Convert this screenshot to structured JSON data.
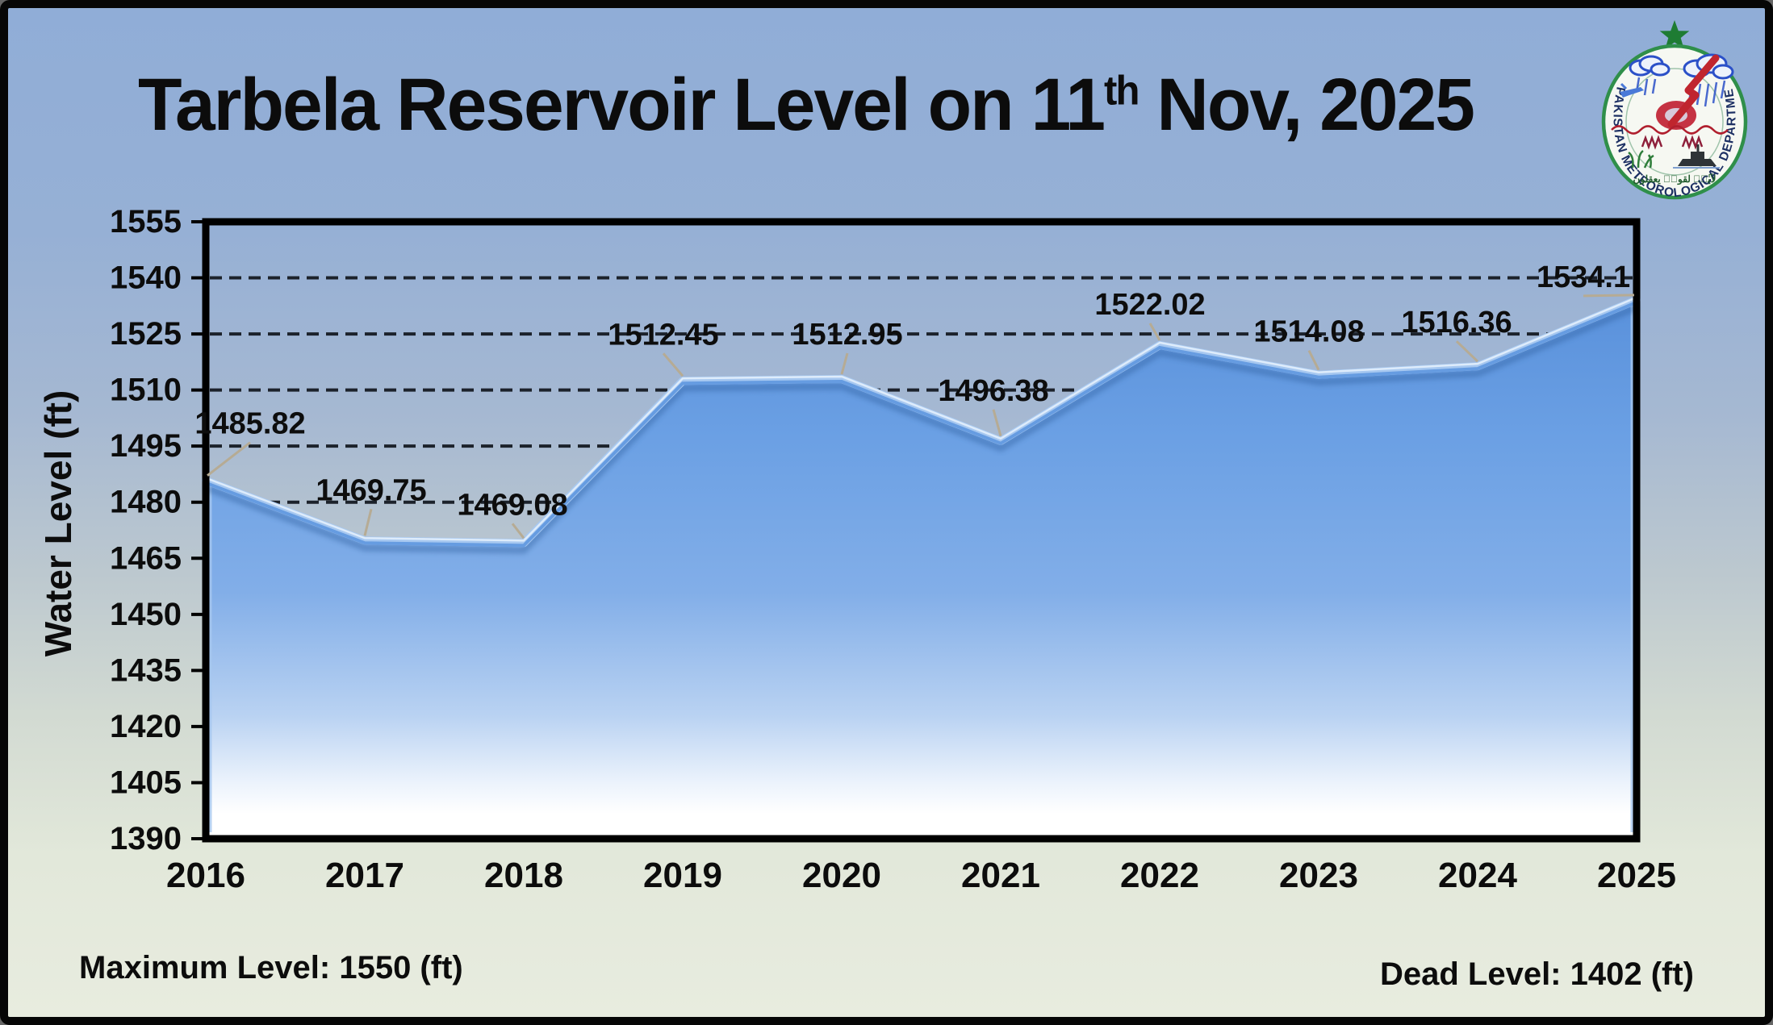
{
  "title": {
    "before_sup": "Tarbela Reservoir Level on 11",
    "sup": "th",
    "after_sup": " Nov, 2025"
  },
  "logo": {
    "ring_text": "PAKISTAN METEOROLOGICAL DEPARTMENT",
    "arabic_motto": "لآيٰتٖ لقومٖ يعقلون"
  },
  "footer": {
    "max_level": "Maximum Level: 1550 (ft)",
    "dead_level": "Dead Level: 1402 (ft)"
  },
  "chart_data": {
    "type": "area",
    "title": "Tarbela Reservoir Level on 11th Nov, 2025",
    "x": [
      "2016",
      "2017",
      "2018",
      "2019",
      "2020",
      "2021",
      "2022",
      "2023",
      "2024",
      "2025"
    ],
    "values": [
      1485.82,
      1469.75,
      1469.08,
      1512.45,
      1512.95,
      1496.38,
      1522.02,
      1514.08,
      1516.36,
      1534.1
    ],
    "value_labels": [
      "1485.82",
      "1469.75",
      "1469.08",
      "1512.45",
      "1512.95",
      "1496.38",
      "1522.02",
      "1514.08",
      "1516.36",
      "1534.1"
    ],
    "ylabel": "Water Level (ft)",
    "ylim": [
      1390,
      1555
    ],
    "ytick_step": 15,
    "grid": "horizontal-dashed",
    "legend": "none",
    "annotations": {
      "maximum_level_ft": 1550,
      "dead_level_ft": 1402
    }
  },
  "colors": {
    "background_top": "#90add7",
    "background_bottom": "#e8ecdf",
    "frame_border": "#060606",
    "plot_border": "#000000",
    "gridline": "#1c222b",
    "area_top": "#4f88d6",
    "area_mid": "#7cabe6",
    "area_bottom": "#ffffff",
    "bevel_light": "#a7c8f0",
    "bevel_core": "#5f97df",
    "bevel_shadow": "#2f5f9e",
    "leader_line": "#b6ab94",
    "text": "#0c0c0c",
    "logo_green": "#1e7c33",
    "logo_navy": "#1c2f63",
    "logo_red": "#c0252e"
  }
}
